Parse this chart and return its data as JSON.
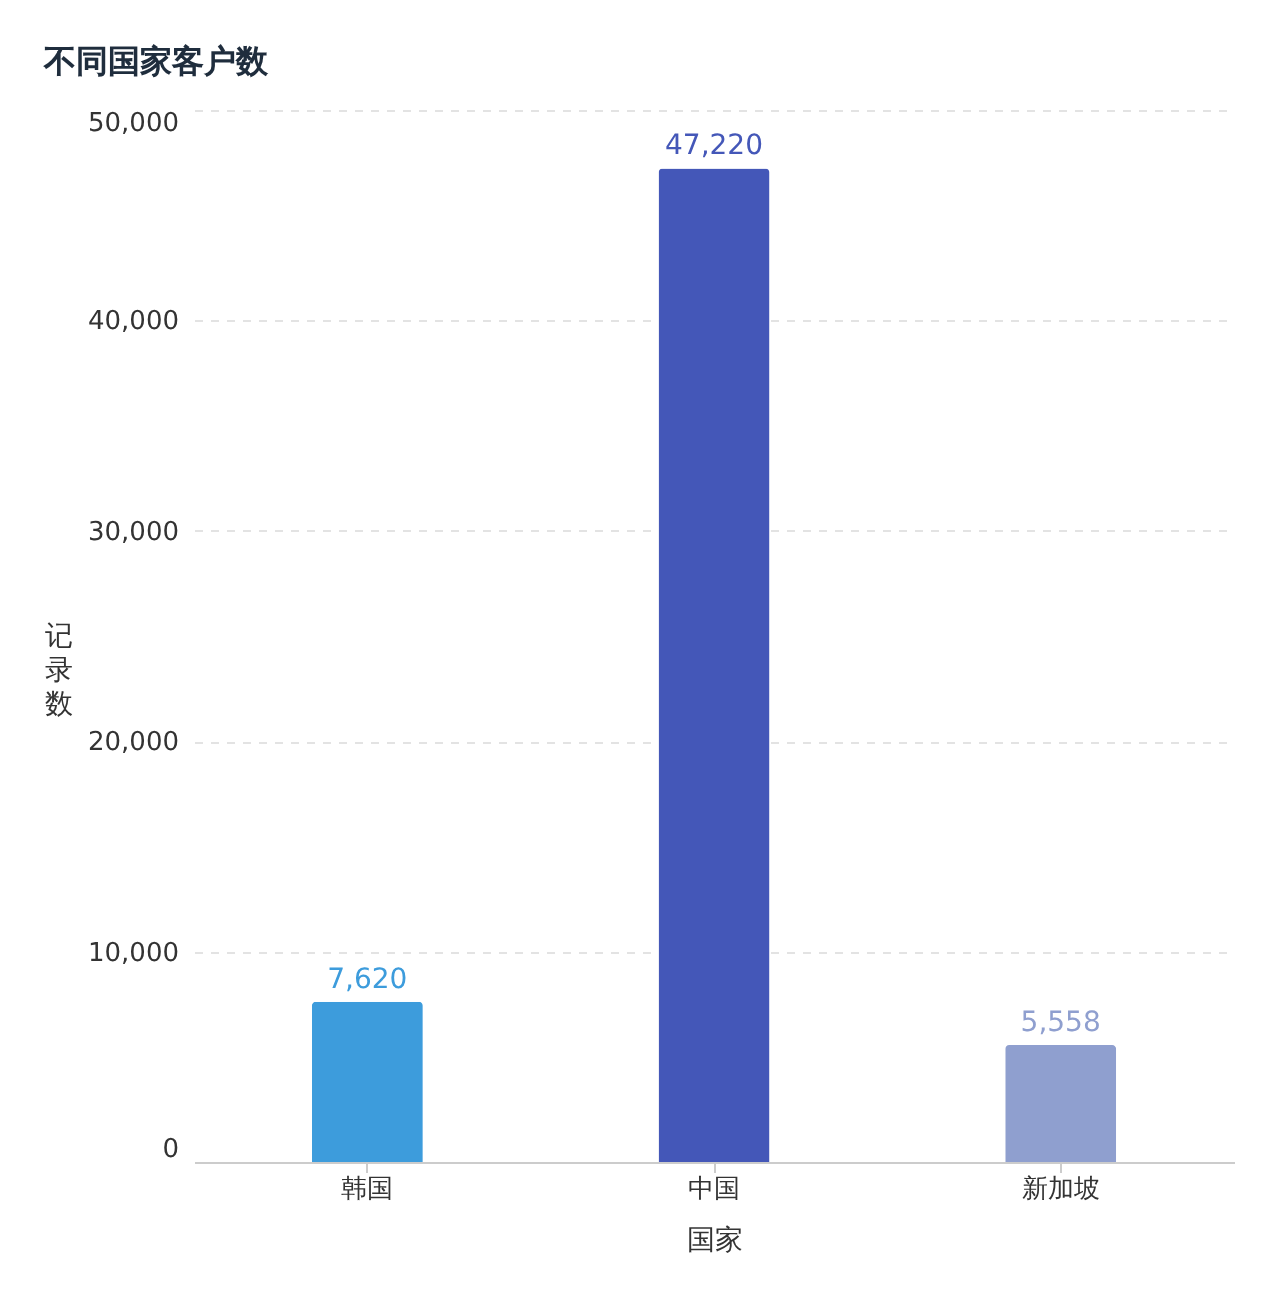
{
  "chart_data": {
    "type": "bar",
    "title": "不同国家客户数",
    "xlabel": "国家",
    "ylabel": "记录数",
    "categories": [
      "韩国",
      "中国",
      "新加坡"
    ],
    "values": [
      7620,
      47220,
      5558
    ],
    "value_labels": [
      "7,620",
      "47,220",
      "5,558"
    ],
    "colors": [
      "#3d9cdc",
      "#4457b8",
      "#8f9fcf"
    ],
    "ylim": [
      0,
      50000
    ],
    "yticks": [
      0,
      {
        "value": 10000,
        "label": "10,000"
      },
      {
        "value": 20000,
        "label": "20,000"
      },
      {
        "value": 30000,
        "label": "30,000"
      },
      {
        "value": 40000,
        "label": "40,000"
      },
      {
        "value": 50000,
        "label": "50,000"
      }
    ],
    "grid": "y",
    "legend": false
  }
}
